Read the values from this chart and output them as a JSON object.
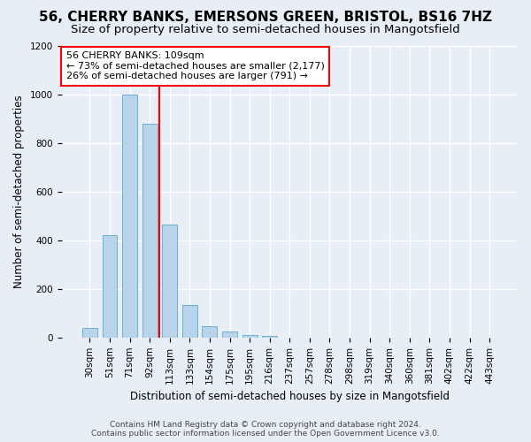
{
  "title": "56, CHERRY BANKS, EMERSONS GREEN, BRISTOL, BS16 7HZ",
  "subtitle": "Size of property relative to semi-detached houses in Mangotsfield",
  "xlabel": "Distribution of semi-detached houses by size in Mangotsfield",
  "ylabel": "Number of semi-detached properties",
  "bin_labels": [
    "30sqm",
    "51sqm",
    "71sqm",
    "92sqm",
    "113sqm",
    "133sqm",
    "154sqm",
    "175sqm",
    "195sqm",
    "216sqm",
    "237sqm",
    "257sqm",
    "278sqm",
    "298sqm",
    "319sqm",
    "340sqm",
    "360sqm",
    "381sqm",
    "402sqm",
    "422sqm",
    "443sqm"
  ],
  "bar_values": [
    40,
    420,
    1000,
    880,
    465,
    135,
    45,
    25,
    12,
    8,
    0,
    0,
    0,
    0,
    0,
    0,
    0,
    0,
    0,
    0,
    0
  ],
  "bar_color": "#b8d4ea",
  "bar_edgecolor": "#6aaed6",
  "vline_index": 3.5,
  "annotation_line1": "56 CHERRY BANKS: 109sqm",
  "annotation_line2": "← 73% of semi-detached houses are smaller (2,177)",
  "annotation_line3": "26% of semi-detached houses are larger (791) →",
  "annotation_box_color": "white",
  "annotation_box_edgecolor": "red",
  "ylim": [
    0,
    1200
  ],
  "yticks": [
    0,
    200,
    400,
    600,
    800,
    1000,
    1200
  ],
  "footer_text": "Contains HM Land Registry data © Crown copyright and database right 2024.\nContains public sector information licensed under the Open Government Licence v3.0.",
  "bg_color": "#e8eef5",
  "plot_bg_color": "#e8eef5",
  "grid_color": "white",
  "vline_color": "red",
  "title_fontsize": 11,
  "subtitle_fontsize": 9.5,
  "axis_label_fontsize": 8.5,
  "tick_fontsize": 7.5,
  "annotation_fontsize": 8,
  "footer_fontsize": 6.5
}
